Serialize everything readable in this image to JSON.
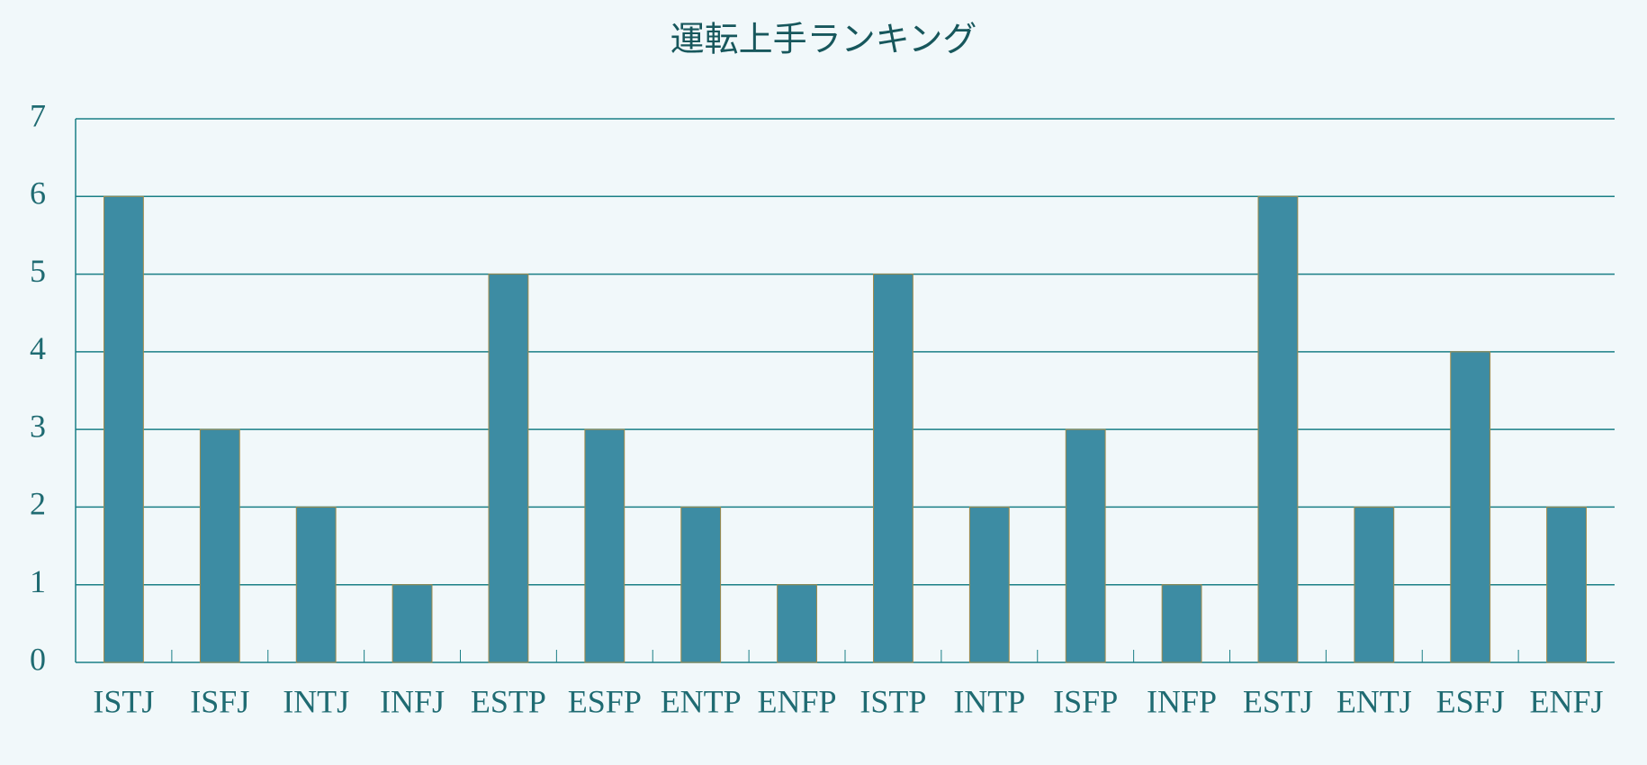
{
  "chart_data": {
    "type": "bar",
    "title": "運転上手ランキング",
    "categories": [
      "ISTJ",
      "ISFJ",
      "INTJ",
      "INFJ",
      "ESTP",
      "ESFP",
      "ENTP",
      "ENFP",
      "ISTP",
      "INTP",
      "ISFP",
      "INFP",
      "ESTJ",
      "ENTJ",
      "ESFJ",
      "ENFJ"
    ],
    "values": [
      6,
      3,
      2,
      1,
      5,
      3,
      2,
      1,
      5,
      2,
      3,
      1,
      6,
      2,
      4,
      2
    ],
    "color": "#3d8ca3",
    "ylim": [
      0,
      7
    ],
    "yticks": [
      0,
      1,
      2,
      3,
      4,
      5,
      6,
      7
    ],
    "grid": true
  }
}
